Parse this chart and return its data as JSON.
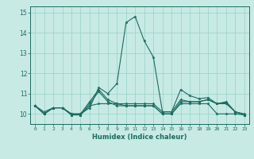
{
  "xlabel": "Humidex (Indice chaleur)",
  "ylabel": "",
  "xlim": [
    -0.5,
    23.5
  ],
  "ylim": [
    9.5,
    15.3
  ],
  "yticks": [
    10,
    11,
    12,
    13,
    14,
    15
  ],
  "xticks": [
    0,
    1,
    2,
    3,
    4,
    5,
    6,
    7,
    8,
    9,
    10,
    11,
    12,
    13,
    14,
    15,
    16,
    17,
    18,
    19,
    20,
    21,
    22,
    23
  ],
  "bg_color": "#c8eae4",
  "line_color": "#1a6b60",
  "grid_color": "#a0d4cc",
  "lines": [
    [
      10.4,
      10.1,
      10.3,
      10.3,
      10.0,
      10.0,
      10.3,
      11.3,
      11.0,
      11.5,
      14.5,
      14.8,
      13.6,
      12.8,
      10.1,
      10.1,
      11.2,
      10.9,
      10.75,
      10.8,
      10.5,
      10.6,
      10.1,
      10.0
    ],
    [
      10.4,
      10.0,
      10.3,
      10.3,
      10.0,
      10.0,
      10.6,
      11.2,
      10.7,
      10.5,
      10.5,
      10.5,
      10.5,
      10.5,
      10.1,
      10.1,
      10.7,
      10.6,
      10.6,
      10.7,
      10.5,
      10.55,
      10.1,
      9.95
    ],
    [
      10.4,
      10.0,
      10.3,
      10.3,
      9.95,
      9.95,
      10.5,
      11.1,
      10.6,
      10.4,
      10.4,
      10.4,
      10.4,
      10.4,
      10.0,
      10.0,
      10.6,
      10.6,
      10.6,
      10.7,
      10.5,
      10.5,
      10.1,
      9.95
    ],
    [
      10.4,
      10.0,
      10.3,
      10.3,
      9.95,
      9.95,
      10.4,
      10.5,
      10.5,
      10.5,
      10.4,
      10.4,
      10.4,
      10.4,
      10.0,
      10.0,
      10.5,
      10.5,
      10.5,
      10.5,
      10.0,
      10.0,
      10.0,
      9.95
    ]
  ]
}
